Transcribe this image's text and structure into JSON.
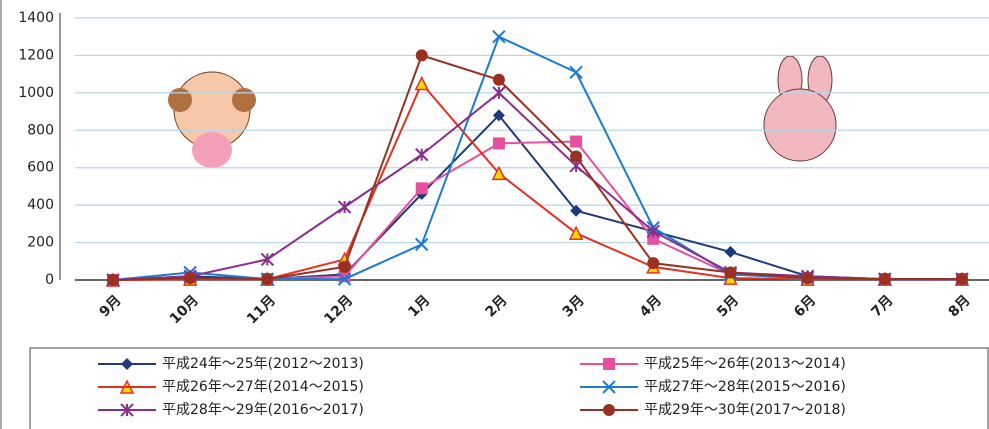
{
  "chart_data": {
    "type": "line",
    "categories": [
      "9月",
      "10月",
      "11月",
      "12月",
      "1月",
      "2月",
      "3月",
      "4月",
      "5月",
      "6月",
      "7月",
      "8月"
    ],
    "series": [
      {
        "name": "平成24年～25年(2012～2013)",
        "color": "#1f3a7a",
        "marker": "diamond",
        "values": [
          0,
          20,
          5,
          30,
          460,
          880,
          370,
          260,
          150,
          20,
          5,
          5
        ]
      },
      {
        "name": "平成25年～26年(2013～2014)",
        "color": "#e6509c",
        "marker": "square",
        "values": [
          0,
          5,
          5,
          20,
          490,
          730,
          740,
          220,
          30,
          10,
          5,
          5
        ]
      },
      {
        "name": "平成26年～27年(2014～2015)",
        "color": "#e83020",
        "marker": "triangle",
        "values": [
          0,
          5,
          5,
          110,
          1050,
          570,
          250,
          70,
          10,
          5,
          5,
          5
        ]
      },
      {
        "name": "平成27年～28年(2015～2016)",
        "color": "#1a7ad4",
        "marker": "x",
        "values": [
          0,
          40,
          5,
          5,
          190,
          1300,
          1110,
          280,
          30,
          10,
          5,
          5
        ]
      },
      {
        "name": "平成28年～29年(2016～2017)",
        "color": "#8a2e8c",
        "marker": "star",
        "values": [
          0,
          20,
          110,
          390,
          670,
          1000,
          610,
          260,
          40,
          20,
          5,
          5
        ]
      },
      {
        "name": "平成29年～30年(2017～2018)",
        "color": "#9a3020",
        "marker": "circle",
        "values": [
          0,
          10,
          5,
          70,
          1200,
          1070,
          660,
          90,
          40,
          10,
          5,
          5
        ]
      }
    ],
    "ylim": [
      0,
      1400
    ],
    "yticks": [
      0,
      200,
      400,
      600,
      800,
      1000,
      1200,
      1400
    ],
    "grid": true
  }
}
